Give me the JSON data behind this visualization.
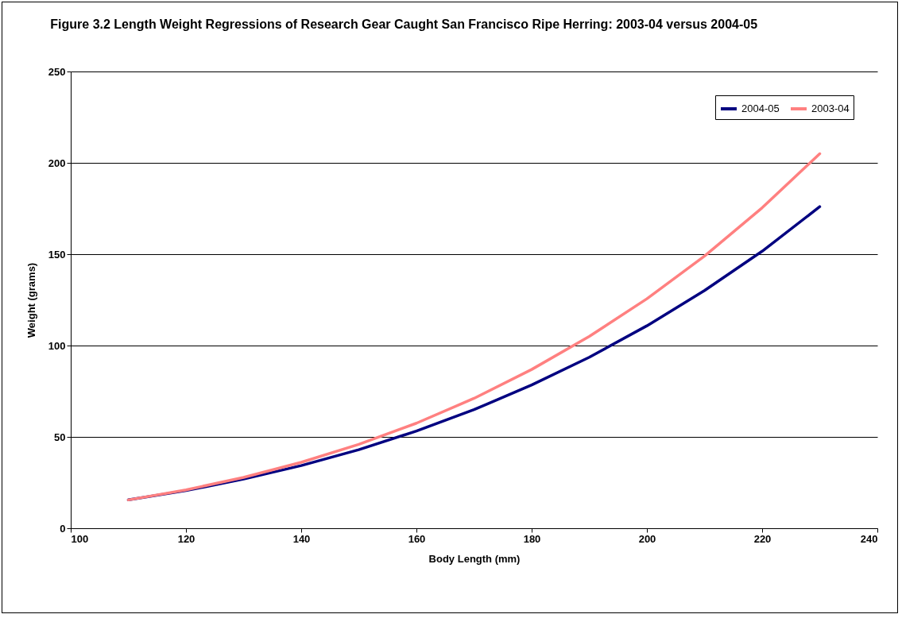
{
  "chart_data": {
    "type": "line",
    "title": "Figure 3.2 Length Weight Regressions of Research Gear Caught San Francisco Ripe Herring: 2003-04 versus 2004-05",
    "xlabel": "Body Length (mm)",
    "ylabel": "Weight (grams)",
    "x": [
      110,
      120,
      130,
      140,
      150,
      160,
      170,
      180,
      190,
      200,
      210,
      220,
      230
    ],
    "series": [
      {
        "name": "2004-05",
        "color": "#000080",
        "values": [
          15.5,
          20.6,
          26.9,
          34.3,
          43.0,
          53.2,
          64.9,
          78.4,
          93.6,
          110.8,
          130.1,
          151.6,
          176
        ]
      },
      {
        "name": "2003-04",
        "color": "#ff8080",
        "values": [
          15.5,
          21.0,
          27.8,
          36.1,
          45.9,
          57.5,
          71.1,
          86.9,
          105.0,
          125.6,
          149.0,
          175.4,
          205
        ]
      }
    ],
    "xlim": [
      100,
      240
    ],
    "xticks": [
      100,
      120,
      140,
      160,
      180,
      200,
      220,
      240
    ],
    "ylim": [
      0,
      250
    ],
    "yticks": [
      0,
      50,
      100,
      150,
      200,
      250
    ],
    "grid": "y",
    "legend": "top right",
    "marker": "none",
    "line_style": "solid"
  }
}
